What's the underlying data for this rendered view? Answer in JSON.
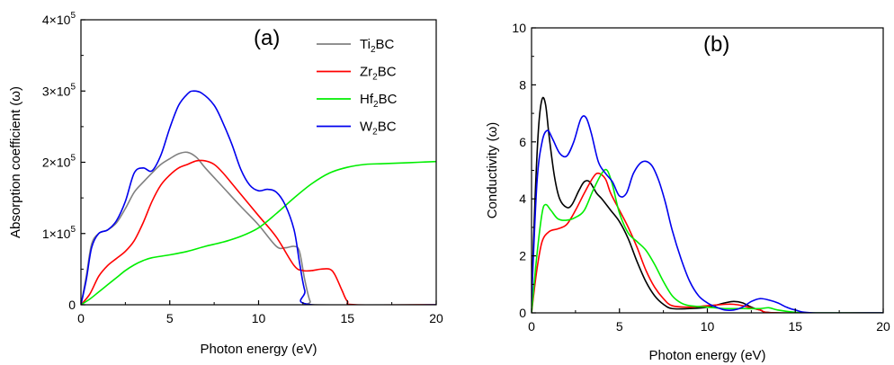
{
  "chart_data": [
    {
      "type": "line",
      "panel_label": "(a)",
      "xlabel": "Photon energy (eV)",
      "ylabel": "Absorption coefficient (ω)",
      "xlim": [
        0,
        20
      ],
      "ylim": [
        0,
        400000
      ],
      "x_ticks": [
        0,
        5,
        10,
        15,
        20
      ],
      "x_tick_labels": [
        "0",
        "5",
        "10",
        "15",
        "20"
      ],
      "y_ticks": [
        0,
        100000,
        200000,
        300000,
        400000
      ],
      "y_tick_labels": [
        "0",
        "1×10",
        "2×10",
        "3×10",
        "4×10"
      ],
      "y_tick_exponents": [
        "",
        "5",
        "5",
        "5",
        "5"
      ],
      "legend_position": "top-right",
      "series": [
        {
          "name": "Ti",
          "name_sub": "2",
          "name_tail": "BC",
          "color": "#808080",
          "points": [
            [
              0,
              0
            ],
            [
              0.3,
              40000
            ],
            [
              0.6,
              85000
            ],
            [
              1,
              100000
            ],
            [
              1.5,
              105000
            ],
            [
              2,
              115000
            ],
            [
              2.5,
              135000
            ],
            [
              3,
              158000
            ],
            [
              3.5,
              172000
            ],
            [
              4,
              185000
            ],
            [
              4.5,
              197000
            ],
            [
              5,
              205000
            ],
            [
              5.5,
              212000
            ],
            [
              6,
              214000
            ],
            [
              6.5,
              207000
            ],
            [
              7,
              192000
            ],
            [
              8,
              165000
            ],
            [
              9,
              138000
            ],
            [
              10,
              112000
            ],
            [
              11,
              82000
            ],
            [
              11.5,
              80000
            ],
            [
              12,
              82000
            ],
            [
              12.3,
              75000
            ],
            [
              12.6,
              35000
            ],
            [
              12.9,
              5000
            ],
            [
              13.2,
              0
            ],
            [
              20,
              0
            ]
          ]
        },
        {
          "name": "Zr",
          "name_sub": "2",
          "name_tail": "BC",
          "color": "#ff0000",
          "points": [
            [
              0,
              0
            ],
            [
              0.5,
              15000
            ],
            [
              1,
              40000
            ],
            [
              1.5,
              55000
            ],
            [
              2,
              65000
            ],
            [
              2.5,
              75000
            ],
            [
              3,
              90000
            ],
            [
              3.5,
              115000
            ],
            [
              4,
              145000
            ],
            [
              4.5,
              168000
            ],
            [
              5,
              182000
            ],
            [
              5.5,
              192000
            ],
            [
              6,
              197000
            ],
            [
              6.5,
              202000
            ],
            [
              7,
              202000
            ],
            [
              7.5,
              197000
            ],
            [
              8,
              185000
            ],
            [
              9,
              155000
            ],
            [
              10,
              125000
            ],
            [
              11,
              95000
            ],
            [
              12,
              55000
            ],
            [
              12.5,
              48000
            ],
            [
              13,
              48000
            ],
            [
              13.5,
              50000
            ],
            [
              14,
              50000
            ],
            [
              14.3,
              42000
            ],
            [
              14.7,
              20000
            ],
            [
              15,
              5000
            ],
            [
              15.5,
              0
            ],
            [
              20,
              0
            ]
          ]
        },
        {
          "name": "Hf",
          "name_sub": "2",
          "name_tail": "BC",
          "color": "#00ee00",
          "points": [
            [
              0,
              0
            ],
            [
              0.5,
              8000
            ],
            [
              1,
              18000
            ],
            [
              1.5,
              28000
            ],
            [
              2,
              38000
            ],
            [
              2.5,
              48000
            ],
            [
              3,
              56000
            ],
            [
              3.5,
              62000
            ],
            [
              4,
              66000
            ],
            [
              5,
              70000
            ],
            [
              6,
              75000
            ],
            [
              7,
              82000
            ],
            [
              8,
              88000
            ],
            [
              9,
              96000
            ],
            [
              10,
              108000
            ],
            [
              11,
              128000
            ],
            [
              12,
              150000
            ],
            [
              13,
              170000
            ],
            [
              14,
              185000
            ],
            [
              15,
              193000
            ],
            [
              16,
              197000
            ],
            [
              17,
              198000
            ],
            [
              18,
              199000
            ],
            [
              19,
              200000
            ],
            [
              20,
              201000
            ]
          ]
        },
        {
          "name": "W",
          "name_sub": "2",
          "name_tail": "BC",
          "color": "#0000ee",
          "points": [
            [
              0,
              0
            ],
            [
              0.3,
              35000
            ],
            [
              0.6,
              80000
            ],
            [
              1,
              100000
            ],
            [
              1.5,
              105000
            ],
            [
              2,
              118000
            ],
            [
              2.5,
              145000
            ],
            [
              3,
              185000
            ],
            [
              3.5,
              192000
            ],
            [
              4,
              188000
            ],
            [
              4.5,
              210000
            ],
            [
              5,
              248000
            ],
            [
              5.5,
              280000
            ],
            [
              6,
              296000
            ],
            [
              6.3,
              300000
            ],
            [
              6.8,
              297000
            ],
            [
              7.5,
              280000
            ],
            [
              8,
              255000
            ],
            [
              8.5,
              225000
            ],
            [
              9,
              190000
            ],
            [
              9.5,
              168000
            ],
            [
              10,
              160000
            ],
            [
              10.5,
              162000
            ],
            [
              11,
              158000
            ],
            [
              11.5,
              140000
            ],
            [
              12,
              105000
            ],
            [
              12.3,
              60000
            ],
            [
              12.6,
              20000
            ],
            [
              13,
              0
            ],
            [
              20,
              0
            ]
          ]
        }
      ]
    },
    {
      "type": "line",
      "panel_label": "(b)",
      "xlabel": "Photon energy (eV)",
      "ylabel": "Conductivity (ω)",
      "xlim": [
        0,
        20
      ],
      "ylim": [
        0,
        10
      ],
      "x_ticks": [
        0,
        5,
        10,
        15,
        20
      ],
      "x_tick_labels": [
        "0",
        "5",
        "10",
        "15",
        "20"
      ],
      "y_ticks": [
        0,
        2,
        4,
        6,
        8,
        10
      ],
      "y_tick_labels": [
        "0",
        "2",
        "4",
        "6",
        "8",
        "10"
      ],
      "series": [
        {
          "color": "#000000",
          "points": [
            [
              0,
              0.5
            ],
            [
              0.2,
              4
            ],
            [
              0.4,
              6.5
            ],
            [
              0.6,
              7.5
            ],
            [
              0.8,
              7.3
            ],
            [
              1,
              6.2
            ],
            [
              1.3,
              4.8
            ],
            [
              1.6,
              4
            ],
            [
              2,
              3.7
            ],
            [
              2.3,
              3.8
            ],
            [
              2.7,
              4.3
            ],
            [
              3,
              4.6
            ],
            [
              3.3,
              4.6
            ],
            [
              3.7,
              4.2
            ],
            [
              4,
              4
            ],
            [
              4.5,
              3.6
            ],
            [
              5,
              3.2
            ],
            [
              5.5,
              2.6
            ],
            [
              6,
              1.8
            ],
            [
              6.5,
              1.1
            ],
            [
              7,
              0.6
            ],
            [
              7.5,
              0.3
            ],
            [
              8,
              0.15
            ],
            [
              9,
              0.15
            ],
            [
              10,
              0.2
            ],
            [
              11,
              0.35
            ],
            [
              11.5,
              0.4
            ],
            [
              12,
              0.35
            ],
            [
              12.5,
              0.2
            ],
            [
              13,
              0.1
            ],
            [
              14,
              0
            ],
            [
              20,
              0
            ]
          ]
        },
        {
          "color": "#ff0000",
          "points": [
            [
              0,
              0
            ],
            [
              0.3,
              1.5
            ],
            [
              0.6,
              2.5
            ],
            [
              1,
              2.85
            ],
            [
              1.5,
              2.95
            ],
            [
              2,
              3.1
            ],
            [
              2.5,
              3.6
            ],
            [
              3,
              4.2
            ],
            [
              3.5,
              4.75
            ],
            [
              3.8,
              4.9
            ],
            [
              4.2,
              4.7
            ],
            [
              4.5,
              4.2
            ],
            [
              5,
              3.6
            ],
            [
              5.5,
              3.0
            ],
            [
              6,
              2.3
            ],
            [
              6.5,
              1.5
            ],
            [
              7,
              0.9
            ],
            [
              7.5,
              0.5
            ],
            [
              8,
              0.25
            ],
            [
              9,
              0.2
            ],
            [
              10,
              0.25
            ],
            [
              11,
              0.3
            ],
            [
              11.5,
              0.3
            ],
            [
              12,
              0.25
            ],
            [
              13,
              0.1
            ],
            [
              14,
              0
            ],
            [
              20,
              0
            ]
          ]
        },
        {
          "color": "#00ee00",
          "points": [
            [
              0,
              0
            ],
            [
              0.3,
              2
            ],
            [
              0.6,
              3.5
            ],
            [
              0.8,
              3.8
            ],
            [
              1.1,
              3.6
            ],
            [
              1.5,
              3.3
            ],
            [
              2,
              3.25
            ],
            [
              2.5,
              3.35
            ],
            [
              3,
              3.6
            ],
            [
              3.5,
              4.3
            ],
            [
              4,
              4.9
            ],
            [
              4.3,
              5
            ],
            [
              4.6,
              4.5
            ],
            [
              5,
              3.5
            ],
            [
              5.5,
              2.8
            ],
            [
              6,
              2.5
            ],
            [
              6.5,
              2.2
            ],
            [
              7,
              1.7
            ],
            [
              7.5,
              1.1
            ],
            [
              8,
              0.6
            ],
            [
              8.5,
              0.35
            ],
            [
              9,
              0.25
            ],
            [
              10,
              0.2
            ],
            [
              11,
              0.15
            ],
            [
              12,
              0.15
            ],
            [
              13,
              0.15
            ],
            [
              13.5,
              0.18
            ],
            [
              14,
              0.1
            ],
            [
              15,
              0.02
            ],
            [
              16,
              0
            ],
            [
              20,
              0
            ]
          ]
        },
        {
          "color": "#0000ee",
          "points": [
            [
              0,
              0.4
            ],
            [
              0.3,
              4.5
            ],
            [
              0.6,
              6
            ],
            [
              0.9,
              6.4
            ],
            [
              1.2,
              6.1
            ],
            [
              1.6,
              5.6
            ],
            [
              2,
              5.5
            ],
            [
              2.4,
              6
            ],
            [
              2.8,
              6.8
            ],
            [
              3.1,
              6.85
            ],
            [
              3.4,
              6.3
            ],
            [
              3.8,
              5.3
            ],
            [
              4.2,
              4.9
            ],
            [
              4.6,
              4.6
            ],
            [
              5,
              4.1
            ],
            [
              5.4,
              4.2
            ],
            [
              5.8,
              4.9
            ],
            [
              6.3,
              5.3
            ],
            [
              6.8,
              5.2
            ],
            [
              7.2,
              4.7
            ],
            [
              7.6,
              3.9
            ],
            [
              8,
              2.9
            ],
            [
              8.5,
              1.9
            ],
            [
              9,
              1.1
            ],
            [
              9.5,
              0.6
            ],
            [
              10,
              0.35
            ],
            [
              10.5,
              0.2
            ],
            [
              11,
              0.1
            ],
            [
              11.5,
              0.1
            ],
            [
              12,
              0.2
            ],
            [
              12.5,
              0.4
            ],
            [
              13,
              0.5
            ],
            [
              13.5,
              0.45
            ],
            [
              14,
              0.35
            ],
            [
              14.5,
              0.2
            ],
            [
              15,
              0.1
            ],
            [
              16,
              0
            ],
            [
              20,
              0
            ]
          ]
        }
      ]
    }
  ]
}
